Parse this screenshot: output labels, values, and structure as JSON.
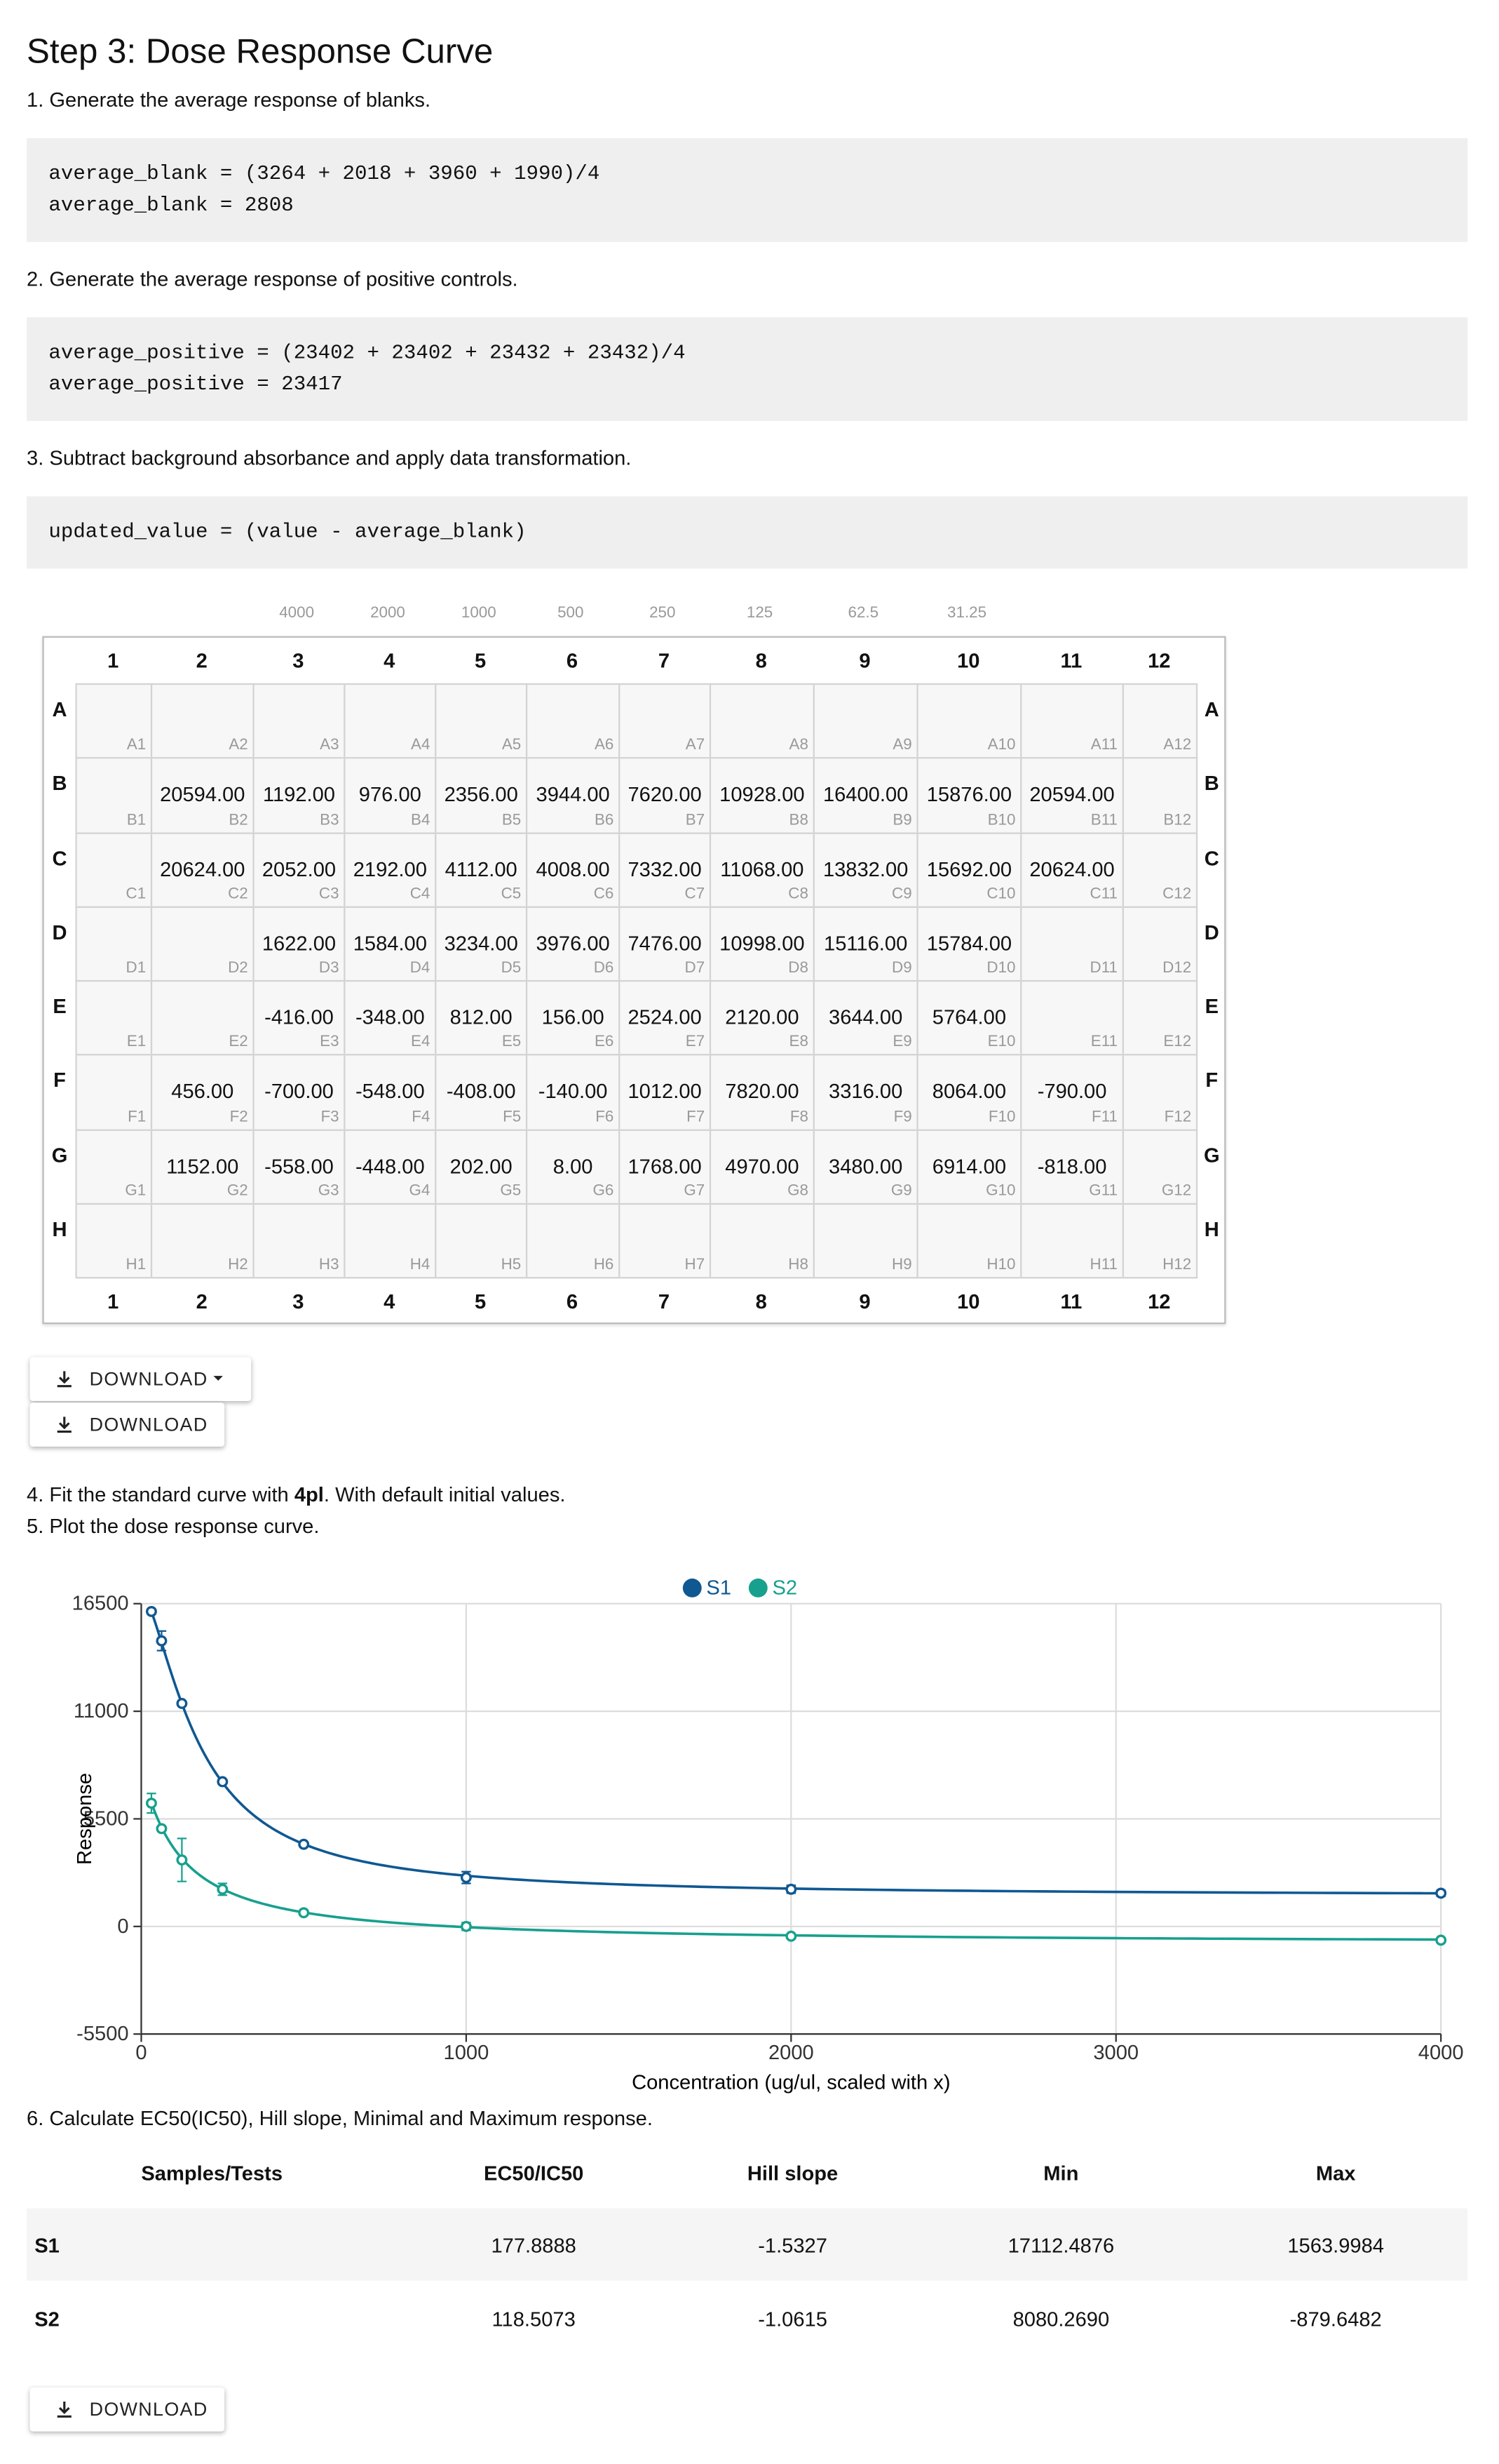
{
  "header": {
    "title": "Step 3: Dose Response Curve"
  },
  "steps": {
    "s1": "1. Generate the average response of blanks.",
    "s2": "2. Generate the average response of positive controls.",
    "s3": "3. Subtract background absorbance and apply data transformation.",
    "s4": {
      "before": "4. Fit the standard curve with ",
      "bold": "4pl",
      "after": ". With default initial values."
    },
    "s5": "5. Plot the dose response curve.",
    "s6": "6. Calculate EC50(IC50), Hill slope, Minimal and Maximum response."
  },
  "code": [
    [
      "average_blank = (3264 + 2018 + 3960 + 1990)/4",
      "average_blank = 2808"
    ],
    [
      "average_positive = (23402 + 23402 + 23432 + 23432)/4",
      "average_positive = 23417"
    ],
    [
      "updated_value = (value - average_blank)"
    ]
  ],
  "plate": {
    "concentrations": [
      null,
      null,
      4000,
      2000,
      1000,
      500,
      250,
      125,
      62.5,
      31.25,
      null,
      null
    ],
    "columns": [
      1,
      2,
      3,
      4,
      5,
      6,
      7,
      8,
      9,
      10,
      11,
      12
    ],
    "rows": [
      "A",
      "B",
      "C",
      "D",
      "E",
      "F",
      "G",
      "H"
    ],
    "values": [
      [
        null,
        null,
        null,
        null,
        null,
        null,
        null,
        null,
        null,
        null,
        null,
        null
      ],
      [
        null,
        "20594.00",
        "1192.00",
        "976.00",
        "2356.00",
        "3944.00",
        "7620.00",
        "10928.00",
        "16400.00",
        "15876.00",
        "20594.00",
        null
      ],
      [
        null,
        "20624.00",
        "2052.00",
        "2192.00",
        "4112.00",
        "4008.00",
        "7332.00",
        "11068.00",
        "13832.00",
        "15692.00",
        "20624.00",
        null
      ],
      [
        null,
        null,
        "1622.00",
        "1584.00",
        "3234.00",
        "3976.00",
        "7476.00",
        "10998.00",
        "15116.00",
        "15784.00",
        null,
        null
      ],
      [
        null,
        null,
        "-416.00",
        "-348.00",
        "812.00",
        "156.00",
        "2524.00",
        "2120.00",
        "3644.00",
        "5764.00",
        null,
        null
      ],
      [
        null,
        "456.00",
        "-700.00",
        "-548.00",
        "-408.00",
        "-140.00",
        "1012.00",
        "7820.00",
        "3316.00",
        "8064.00",
        "-790.00",
        null
      ],
      [
        null,
        "1152.00",
        "-558.00",
        "-448.00",
        "202.00",
        "8.00",
        "1768.00",
        "4970.00",
        "3480.00",
        "6914.00",
        "-818.00",
        null
      ],
      [
        null,
        null,
        null,
        null,
        null,
        null,
        null,
        null,
        null,
        null,
        null,
        null
      ]
    ],
    "wells": [
      [
        "A1",
        "A2",
        "A3",
        "A4",
        "A5",
        "A6",
        "A7",
        "A8",
        "A9",
        "A10",
        "A11",
        "A12"
      ],
      [
        "B1",
        "B2",
        "B3",
        "B4",
        "B5",
        "B6",
        "B7",
        "B8",
        "B9",
        "B10",
        "B11",
        "B12"
      ],
      [
        "C1",
        "C2",
        "C3",
        "C4",
        "C5",
        "C6",
        "C7",
        "C8",
        "C9",
        "C10",
        "C11",
        "C12"
      ],
      [
        "D1",
        "D2",
        "D3",
        "D4",
        "D5",
        "D6",
        "D7",
        "D8",
        "D9",
        "D10",
        "D11",
        "D12"
      ],
      [
        "E1",
        "E2",
        "E3",
        "E4",
        "E5",
        "E6",
        "E7",
        "E8",
        "E9",
        "E10",
        "E11",
        "E12"
      ],
      [
        "F1",
        "F2",
        "F3",
        "F4",
        "F5",
        "F6",
        "F7",
        "F8",
        "F9",
        "F10",
        "F11",
        "F12"
      ],
      [
        "G1",
        "G2",
        "G3",
        "G4",
        "G5",
        "G6",
        "G7",
        "G8",
        "G9",
        "G10",
        "G11",
        "G12"
      ],
      [
        "H1",
        "H2",
        "H3",
        "H4",
        "H5",
        "H6",
        "H7",
        "H8",
        "H9",
        "H10",
        "H11",
        "H12"
      ]
    ]
  },
  "buttons": {
    "download_menu": "DOWNLOAD",
    "download": "DOWNLOAD",
    "download_results": "DOWNLOAD"
  },
  "chart_data": {
    "type": "line",
    "legend": "top",
    "grid": true,
    "xlabel": "Concentration (ug/ul, scaled with x)",
    "ylabel": "Response",
    "x": [
      31.25,
      62.5,
      125,
      250,
      500,
      1000,
      2000,
      4000
    ],
    "xlim": [
      0,
      4000
    ],
    "xticks": [
      0,
      1000,
      2000,
      3000,
      4000
    ],
    "ylim": [
      -5500,
      16500
    ],
    "yticks": [
      -5500,
      0,
      5500,
      11000,
      16500
    ],
    "series": [
      {
        "name": "S1",
        "color": "#0f5892",
        "values": [
          16100,
          14600,
          11400,
          7400,
          4200,
          2500,
          1900,
          1700
        ],
        "errors": [
          100,
          500,
          100,
          100,
          100,
          300,
          200,
          150
        ]
      },
      {
        "name": "S2",
        "color": "#17a08e",
        "values": [
          6300,
          5000,
          3400,
          1900,
          700,
          0,
          -500,
          -700
        ],
        "errors": [
          500,
          0,
          1100,
          300,
          100,
          200,
          100,
          100
        ]
      }
    ]
  },
  "results": {
    "columns": [
      "Samples/Tests",
      "EC50/IC50",
      "Hill slope",
      "Min",
      "Max"
    ],
    "rows": [
      [
        "S1",
        "177.8888",
        "-1.5327",
        "17112.4876",
        "1563.9984"
      ],
      [
        "S2",
        "118.5073",
        "-1.0615",
        "8080.2690",
        "-879.6482"
      ]
    ]
  }
}
